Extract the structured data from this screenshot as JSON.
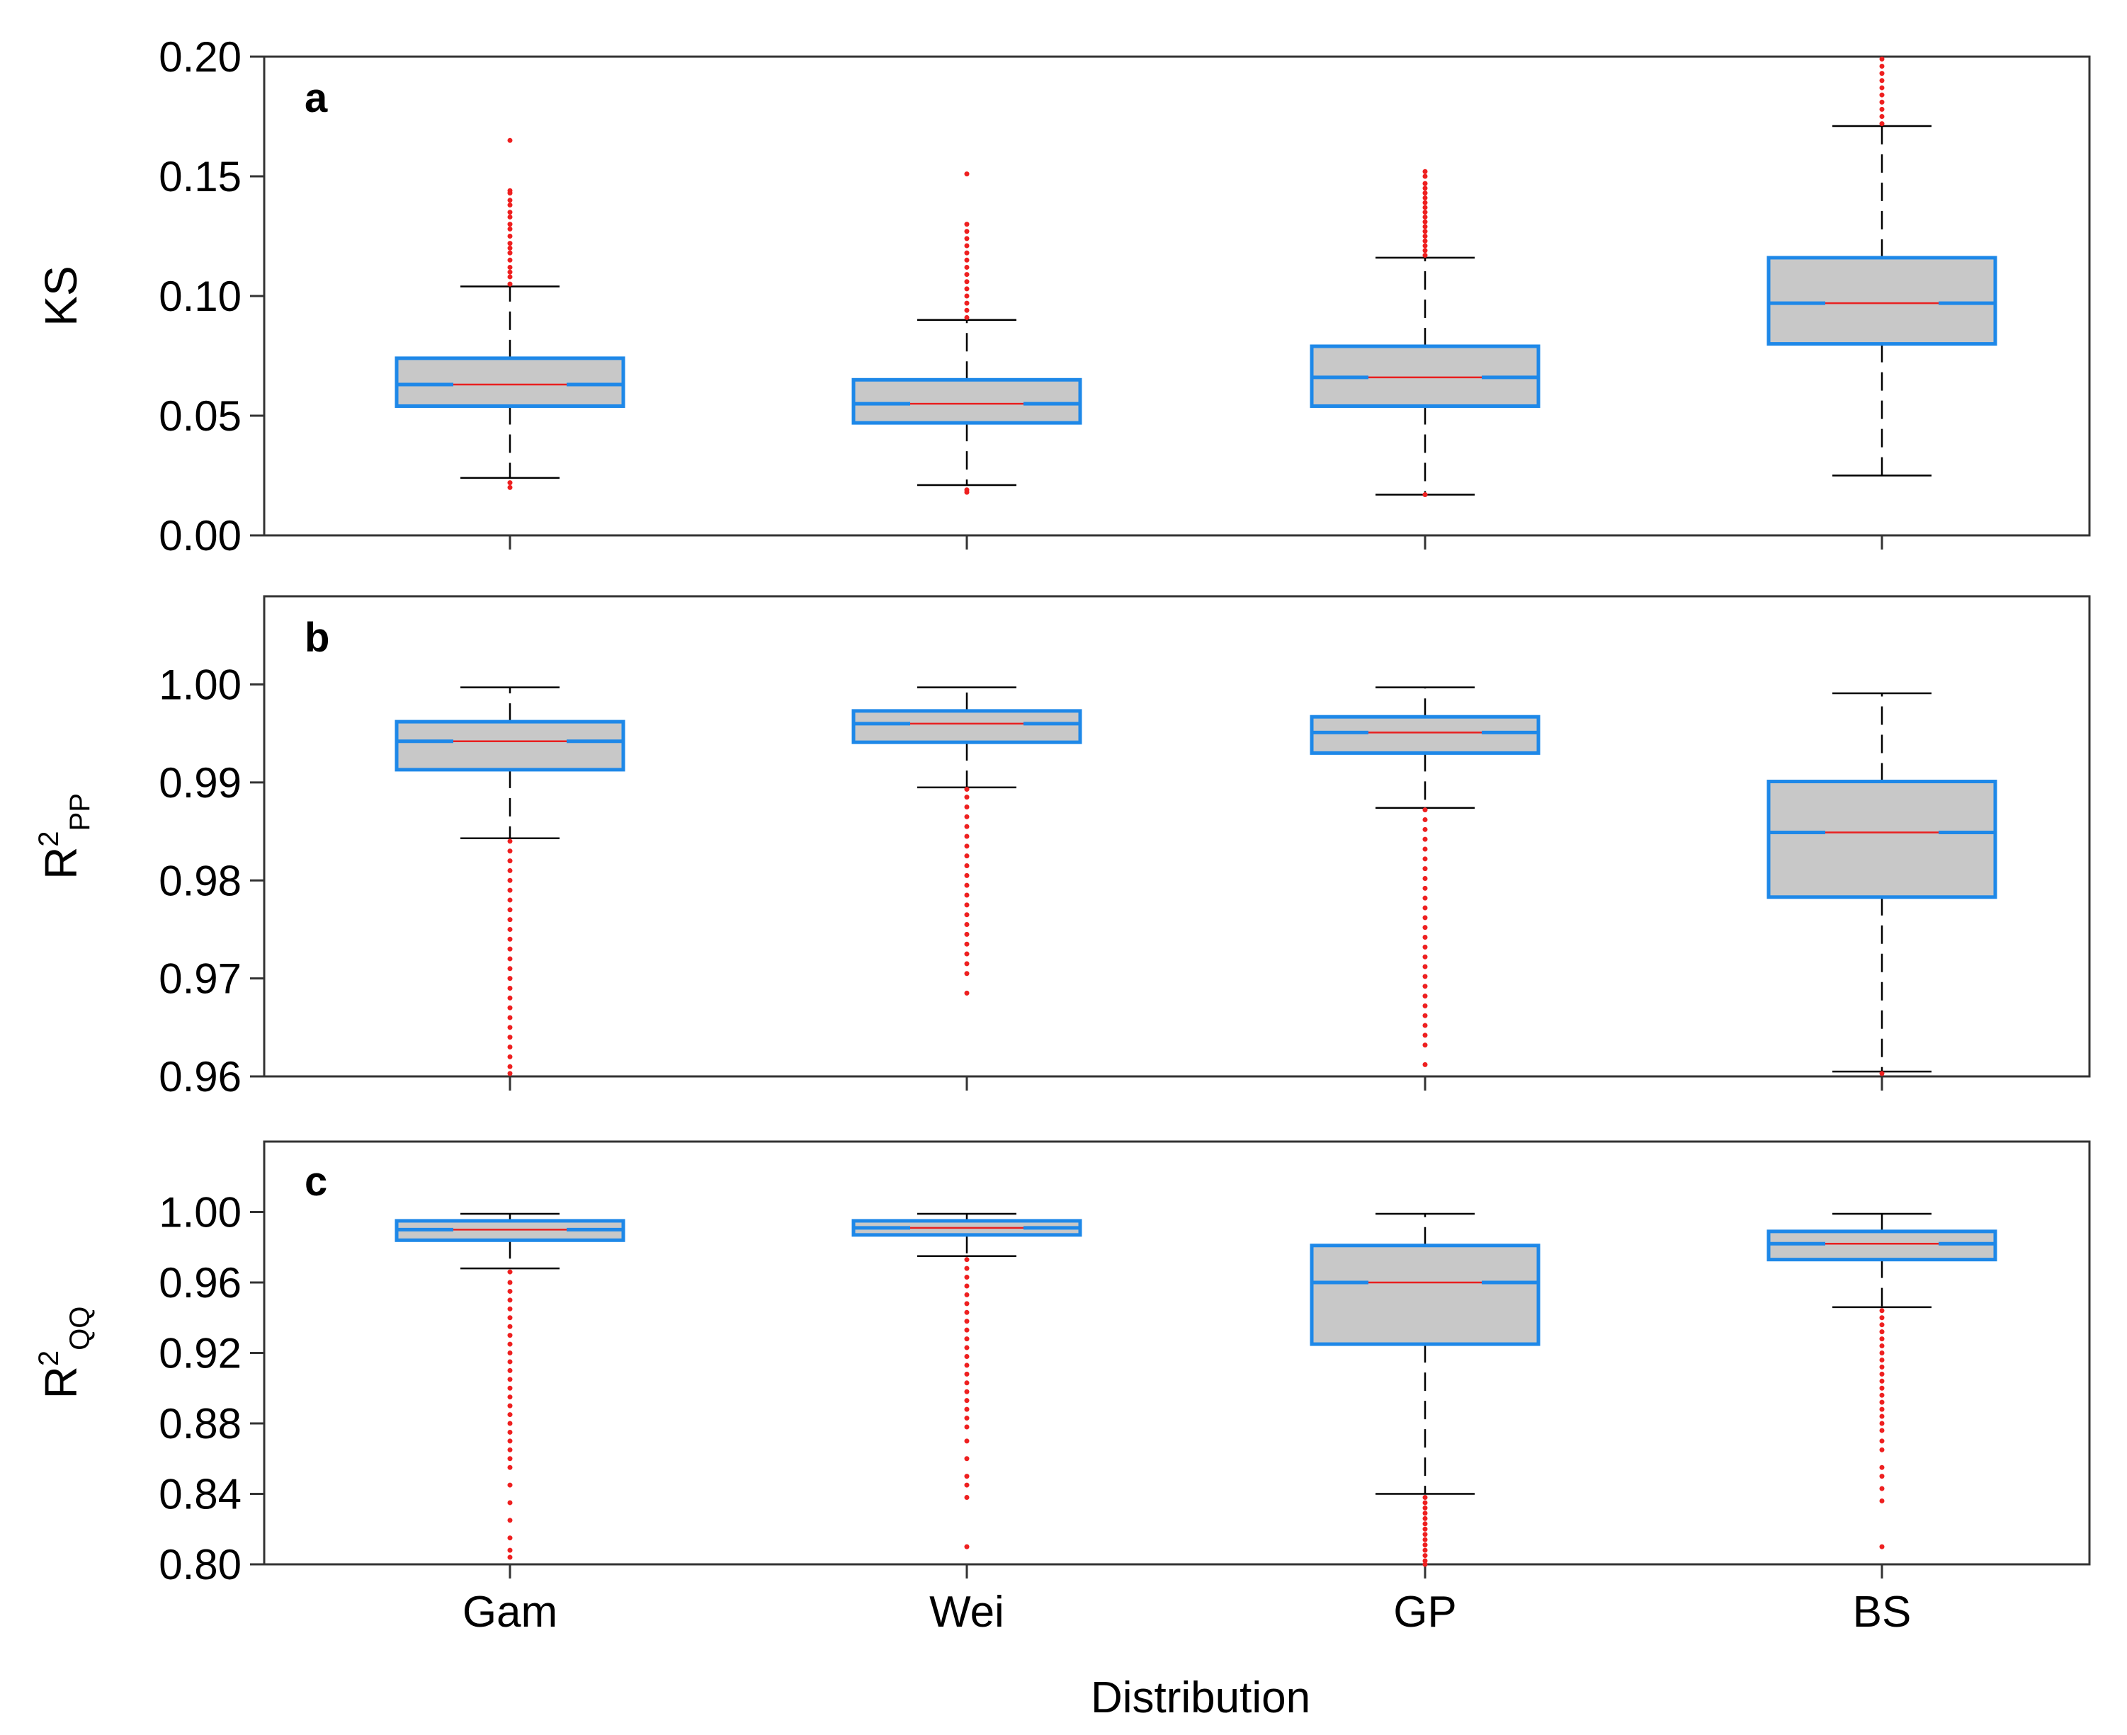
{
  "chart_data": {
    "type": "boxplot",
    "xlabel": "Distribution",
    "categories": [
      "Gam",
      "Wei",
      "GP",
      "BS"
    ],
    "colors": {
      "box_fill": "#c8c8c8",
      "box_edge": "#1e88e8",
      "median_line": "#e82020",
      "outlier": "#ee2020",
      "whisker": "#000000",
      "frame": "#333333"
    },
    "panels": [
      {
        "letter": "a",
        "ylabel": {
          "main": "KS",
          "sup": "",
          "sub": ""
        },
        "ylim": [
          0.0,
          0.2
        ],
        "yticks": [
          0.0,
          0.05,
          0.1,
          0.15,
          0.2
        ],
        "ytick_labels": [
          "0.00",
          "0.05",
          "0.10",
          "0.15",
          "0.20"
        ],
        "boxes": [
          {
            "q1": 0.054,
            "median": 0.063,
            "q3": 0.074,
            "whisker_low": 0.024,
            "whisker_high": 0.104,
            "outliers": [
              0.02,
              0.022,
              0.105,
              0.108,
              0.11,
              0.112,
              0.115,
              0.118,
              0.12,
              0.122,
              0.125,
              0.128,
              0.13,
              0.133,
              0.135,
              0.138,
              0.14,
              0.143,
              0.144,
              0.165
            ]
          },
          {
            "q1": 0.047,
            "median": 0.055,
            "q3": 0.065,
            "whisker_low": 0.021,
            "whisker_high": 0.09,
            "outliers": [
              0.018,
              0.019,
              0.091,
              0.094,
              0.097,
              0.1,
              0.103,
              0.106,
              0.109,
              0.112,
              0.115,
              0.118,
              0.121,
              0.124,
              0.127,
              0.13,
              0.151
            ]
          },
          {
            "q1": 0.054,
            "median": 0.066,
            "q3": 0.079,
            "whisker_low": 0.017,
            "whisker_high": 0.116,
            "outliers": [
              0.017,
              0.117,
              0.119,
              0.121,
              0.123,
              0.125,
              0.127,
              0.129,
              0.131,
              0.133,
              0.135,
              0.137,
              0.139,
              0.141,
              0.143,
              0.145,
              0.147,
              0.15,
              0.152
            ]
          },
          {
            "q1": 0.08,
            "median": 0.097,
            "q3": 0.116,
            "whisker_low": 0.025,
            "whisker_high": 0.171,
            "outliers": [
              0.172,
              0.175,
              0.178,
              0.181,
              0.184,
              0.187,
              0.19,
              0.193,
              0.196,
              0.199
            ]
          }
        ]
      },
      {
        "letter": "b",
        "ylabel": {
          "main": "R",
          "sup": "2",
          "sub": "PP"
        },
        "ylim": [
          0.96,
          1.009
        ],
        "yticks": [
          0.96,
          0.97,
          0.98,
          0.99,
          1.0
        ],
        "ytick_labels": [
          "0.96",
          "0.97",
          "0.98",
          "0.99",
          "1.00"
        ],
        "boxes": [
          {
            "q1": 0.9913,
            "median": 0.9942,
            "q3": 0.9962,
            "whisker_low": 0.9843,
            "whisker_high": 0.9997,
            "outliers": [
              0.984,
              0.983,
              0.982,
              0.981,
              0.98,
              0.979,
              0.978,
              0.977,
              0.976,
              0.975,
              0.974,
              0.973,
              0.972,
              0.971,
              0.97,
              0.969,
              0.968,
              0.967,
              0.966,
              0.965,
              0.964,
              0.963,
              0.962,
              0.961,
              0.9603
            ]
          },
          {
            "q1": 0.9941,
            "median": 0.996,
            "q3": 0.9973,
            "whisker_low": 0.9895,
            "whisker_high": 0.9997,
            "outliers": [
              0.9893,
              0.9885,
              0.9875,
              0.9865,
              0.9855,
              0.9845,
              0.9835,
              0.9825,
              0.9815,
              0.9805,
              0.9795,
              0.9785,
              0.9775,
              0.9765,
              0.9755,
              0.9745,
              0.9735,
              0.9725,
              0.9715,
              0.9705,
              0.9685
            ]
          },
          {
            "q1": 0.993,
            "median": 0.9951,
            "q3": 0.9967,
            "whisker_low": 0.9874,
            "whisker_high": 0.9997,
            "outliers": [
              0.9872,
              0.9862,
              0.9852,
              0.9842,
              0.9832,
              0.9822,
              0.9812,
              0.9802,
              0.9792,
              0.9782,
              0.9772,
              0.9762,
              0.9752,
              0.9742,
              0.9732,
              0.9722,
              0.9712,
              0.9702,
              0.9692,
              0.9682,
              0.9672,
              0.9662,
              0.9652,
              0.9642,
              0.9632,
              0.9612
            ]
          },
          {
            "q1": 0.9783,
            "median": 0.9849,
            "q3": 0.9901,
            "whisker_low": 0.9605,
            "whisker_high": 0.9991,
            "outliers": [
              0.9603
            ]
          }
        ]
      },
      {
        "letter": "c",
        "ylabel": {
          "main": "R",
          "sup": "2",
          "sub": "QQ"
        },
        "ylim": [
          0.8,
          1.04
        ],
        "yticks": [
          0.8,
          0.84,
          0.88,
          0.92,
          0.96,
          1.0
        ],
        "ytick_labels": [
          "0.80",
          "0.84",
          "0.88",
          "0.92",
          "0.96",
          "1.00"
        ],
        "boxes": [
          {
            "q1": 0.984,
            "median": 0.99,
            "q3": 0.995,
            "whisker_low": 0.968,
            "whisker_high": 0.999,
            "outliers": [
              0.966,
              0.96,
              0.955,
              0.95,
              0.945,
              0.94,
              0.935,
              0.93,
              0.925,
              0.92,
              0.915,
              0.91,
              0.905,
              0.9,
              0.895,
              0.89,
              0.885,
              0.88,
              0.875,
              0.87,
              0.865,
              0.86,
              0.855,
              0.845,
              0.835,
              0.825,
              0.815,
              0.808,
              0.804
            ]
          },
          {
            "q1": 0.987,
            "median": 0.991,
            "q3": 0.995,
            "whisker_low": 0.975,
            "whisker_high": 0.999,
            "outliers": [
              0.973,
              0.968,
              0.963,
              0.958,
              0.953,
              0.948,
              0.943,
              0.938,
              0.933,
              0.928,
              0.923,
              0.918,
              0.913,
              0.908,
              0.903,
              0.898,
              0.893,
              0.888,
              0.883,
              0.878,
              0.87,
              0.86,
              0.85,
              0.845,
              0.838,
              0.81
            ]
          },
          {
            "q1": 0.925,
            "median": 0.96,
            "q3": 0.981,
            "whisker_low": 0.84,
            "whisker_high": 0.999,
            "outliers": [
              0.838,
              0.835,
              0.832,
              0.829,
              0.826,
              0.823,
              0.82,
              0.817,
              0.814,
              0.811,
              0.808,
              0.805,
              0.802,
              0.8
            ]
          },
          {
            "q1": 0.973,
            "median": 0.982,
            "q3": 0.989,
            "whisker_low": 0.946,
            "whisker_high": 0.999,
            "outliers": [
              0.944,
              0.94,
              0.936,
              0.932,
              0.928,
              0.924,
              0.92,
              0.916,
              0.912,
              0.908,
              0.904,
              0.9,
              0.896,
              0.892,
              0.888,
              0.884,
              0.88,
              0.876,
              0.87,
              0.865,
              0.855,
              0.85,
              0.843,
              0.836,
              0.81
            ]
          }
        ]
      }
    ]
  }
}
